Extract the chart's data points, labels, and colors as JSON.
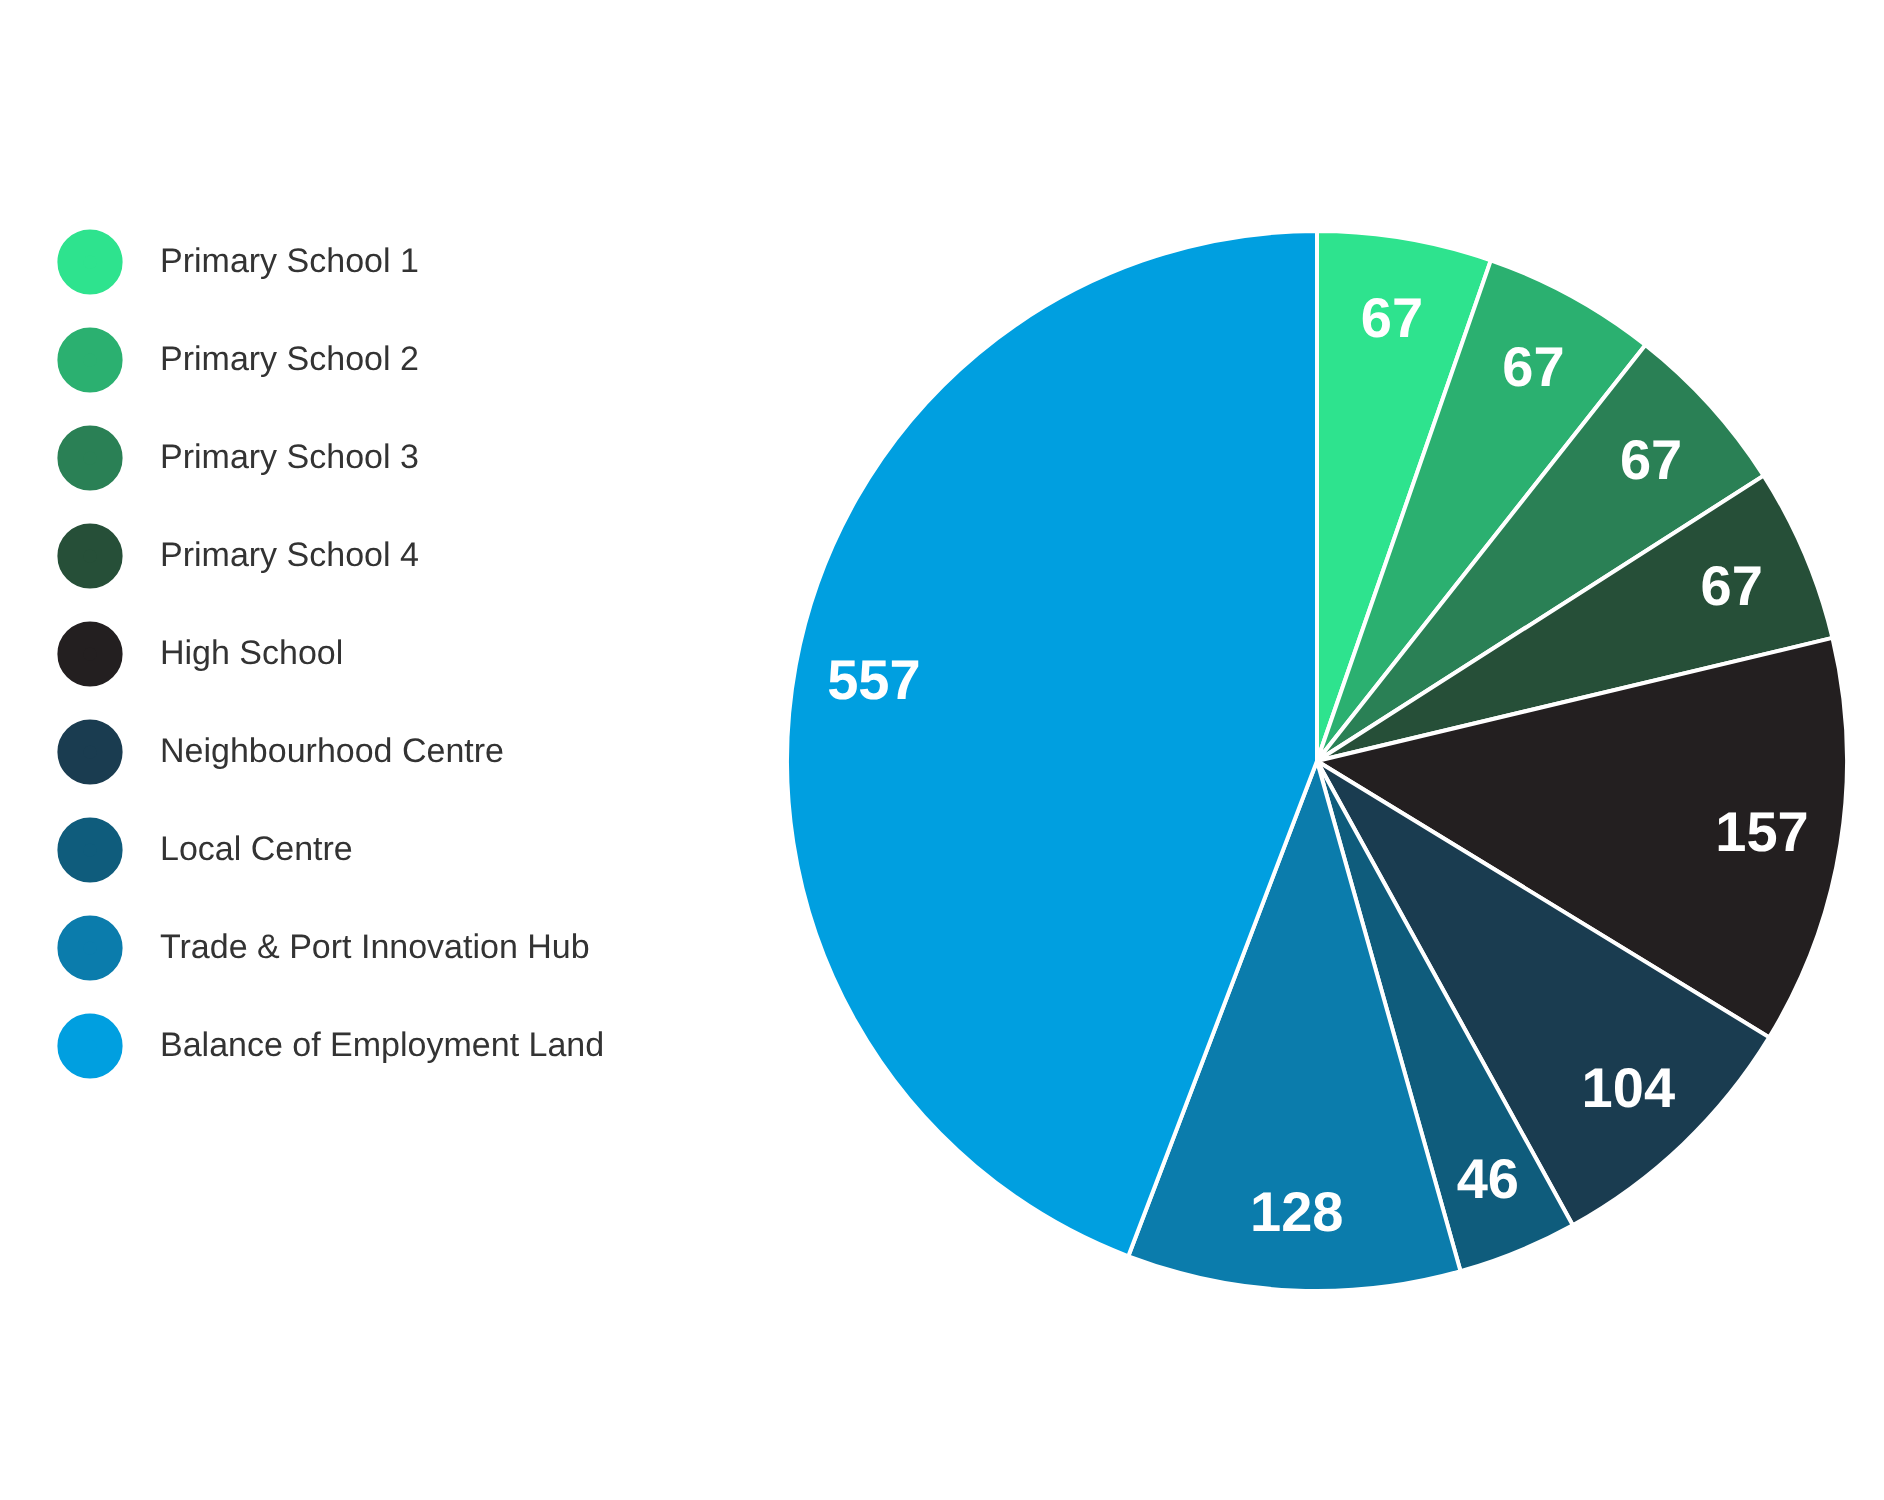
{
  "chart_data": {
    "type": "pie",
    "categories": [
      "Primary School 1",
      "Primary School 2",
      "Primary School 3",
      "Primary School 4",
      "High School",
      "Neighbourhood Centre",
      "Local Centre",
      "Trade & Port Innovation Hub",
      "Balance of Employment Land"
    ],
    "values": [
      67,
      67,
      67,
      67,
      157,
      104,
      46,
      128,
      557
    ],
    "colors": [
      "#2ee38e",
      "#2bb070",
      "#2a8055",
      "#264f38",
      "#231f20",
      "#1a3c50",
      "#0f5c7c",
      "#0b7cac",
      "#009fe0"
    ],
    "data_labels": true,
    "legend": "left"
  }
}
